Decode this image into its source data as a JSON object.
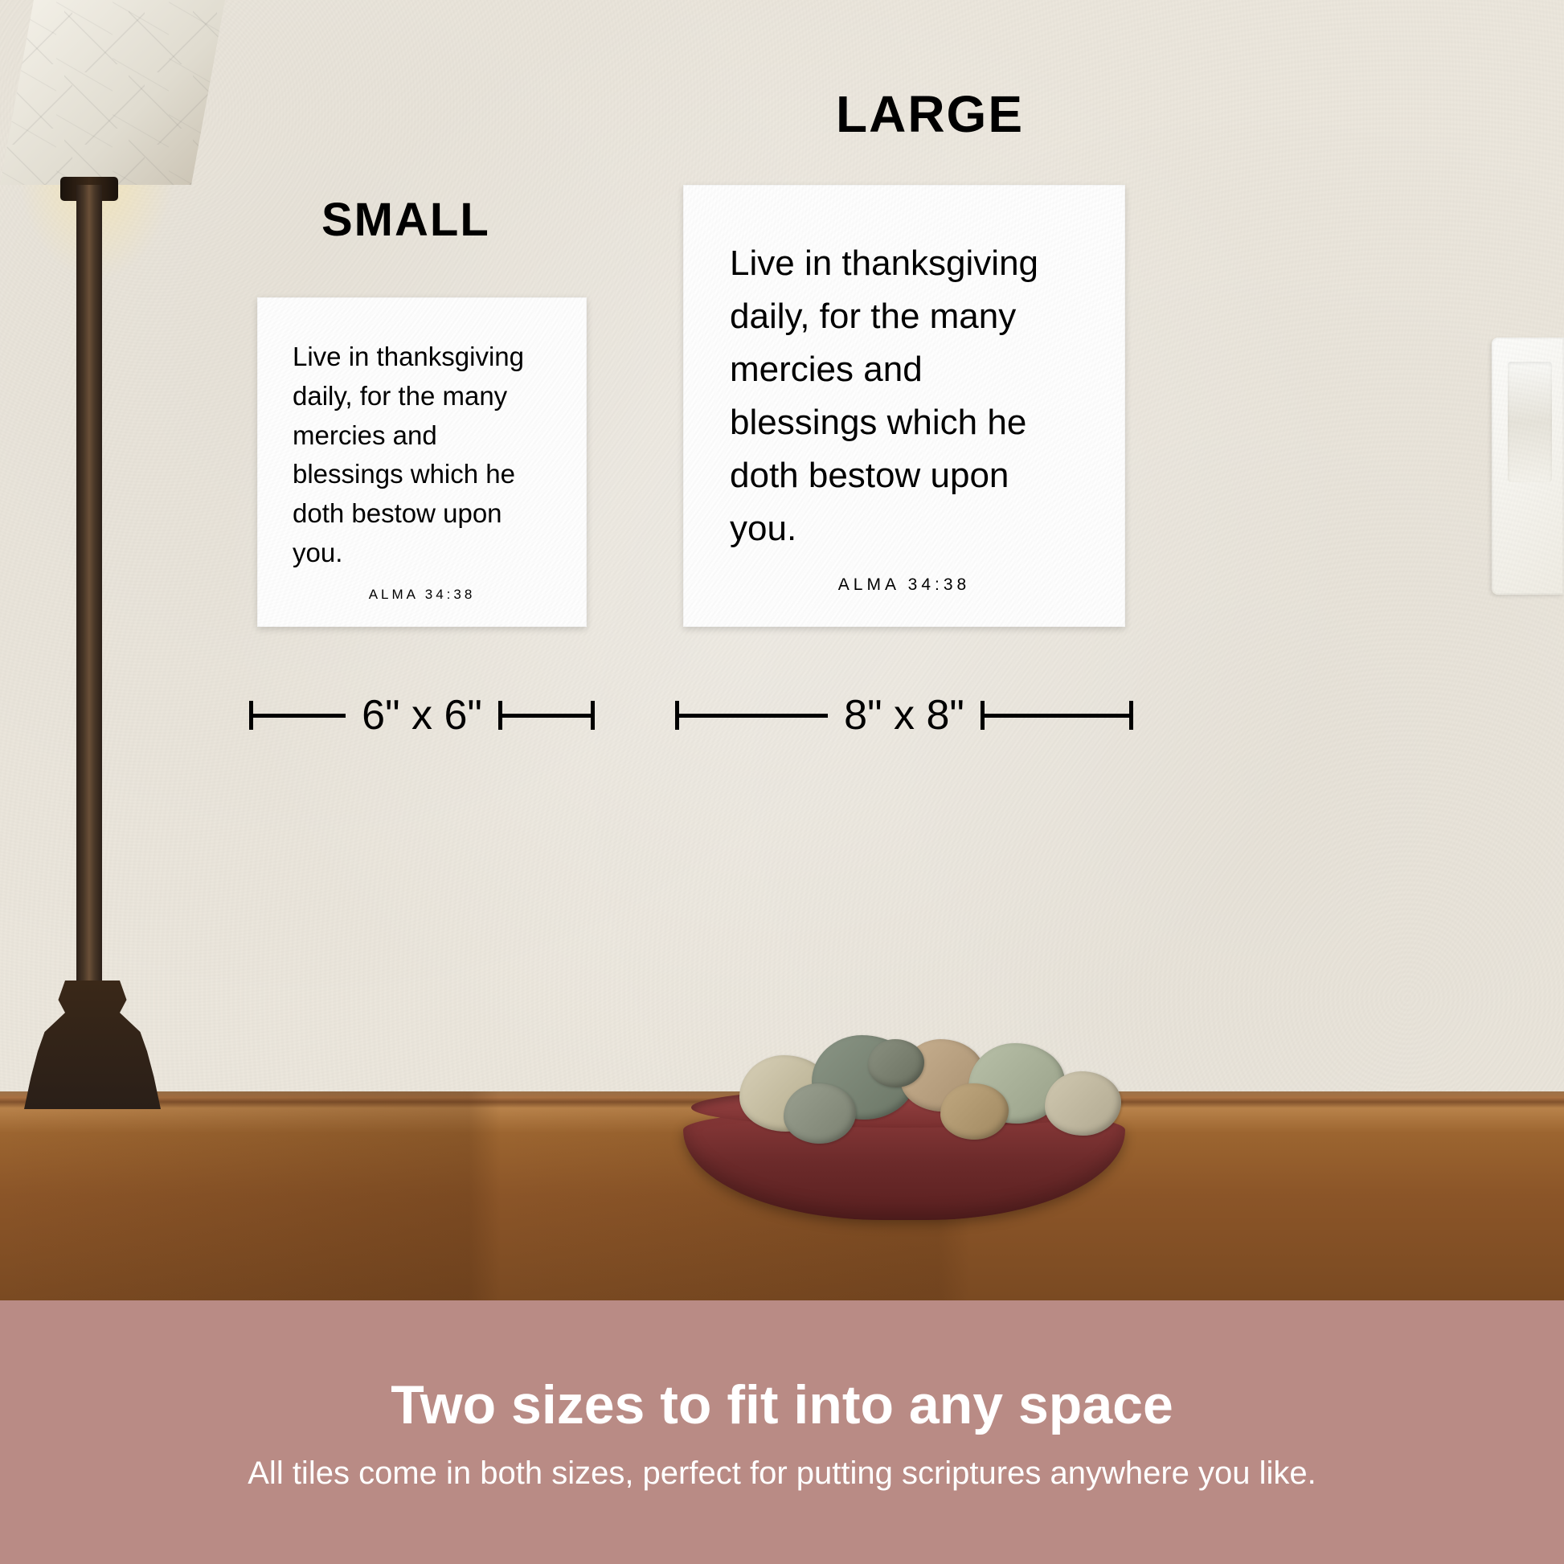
{
  "labels": {
    "small": "SMALL",
    "large": "LARGE"
  },
  "tile": {
    "verse": "Live in thanksgiving daily, for the many mercies and blessings which he doth bestow upon you.",
    "reference": "ALMA 34:38"
  },
  "dimensions": {
    "small": "6\" x 6\"",
    "large": "8\" x 8\""
  },
  "banner": {
    "title": "Two sizes to fit into any space",
    "subtitle": "All tiles come in both sizes, perfect for putting scriptures anywhere you like."
  },
  "colors": {
    "wall": "#ece7dd",
    "tile_bg": "#ffffff",
    "text": "#000000",
    "banner_bg": "#b98b85",
    "banner_text": "#ffffff",
    "table": "#8b5a2b",
    "bowl": "#8b3a3a",
    "lamp_pole": "#4a3828"
  }
}
